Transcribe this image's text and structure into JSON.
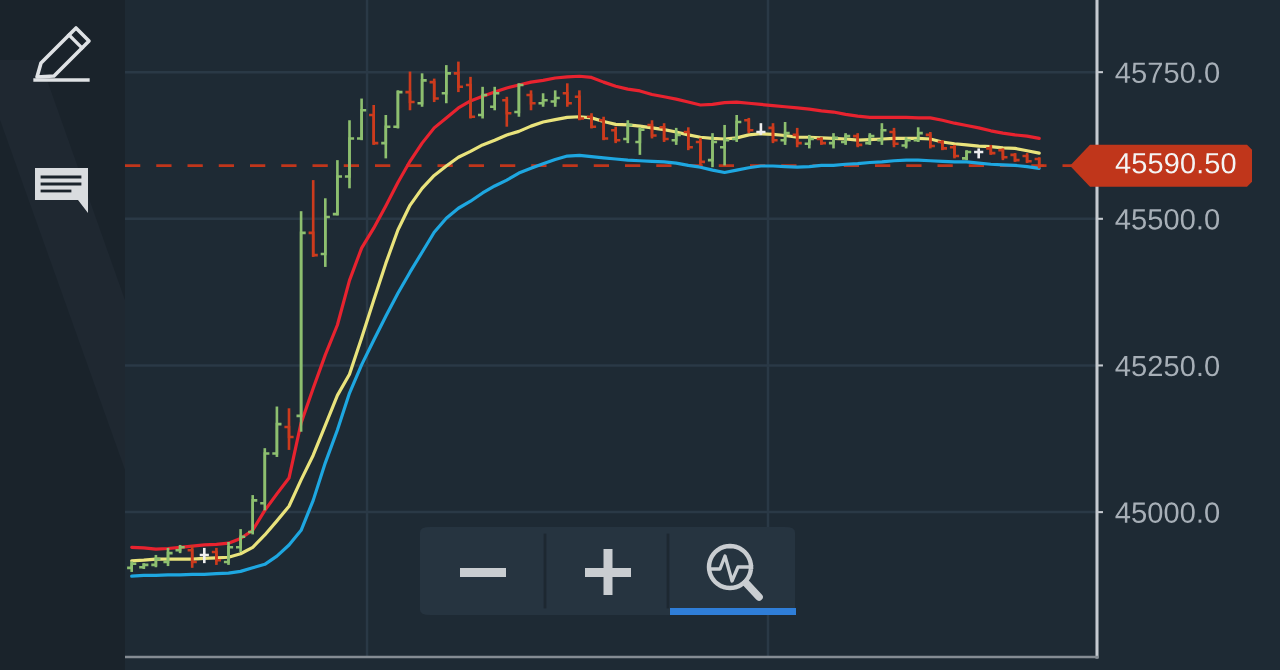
{
  "chart_data": {
    "type": "candlestick",
    "categories": [
      null,
      null,
      null,
      null,
      null,
      null,
      null,
      null,
      null,
      null,
      null,
      null,
      null,
      null,
      null,
      null,
      null,
      null,
      null,
      null,
      null,
      null,
      null,
      null,
      null,
      null,
      null,
      null,
      null,
      null,
      null,
      null,
      null,
      null,
      null,
      null,
      null,
      null,
      null,
      null,
      null,
      null,
      null,
      null,
      null,
      null,
      null,
      null,
      null,
      null,
      null,
      null,
      null,
      null,
      null,
      null,
      null,
      null,
      null,
      null,
      null,
      null,
      null,
      null,
      null,
      null,
      null,
      null,
      null,
      null,
      null,
      null,
      null,
      null,
      null,
      null
    ],
    "ohlc": [
      [
        44905,
        44916,
        44898,
        44912
      ],
      [
        44906,
        44913,
        44903,
        44910
      ],
      [
        44910,
        44927,
        44906,
        44920
      ],
      [
        44915,
        44939,
        44908,
        44930
      ],
      [
        44935,
        44944,
        44930,
        44940
      ],
      [
        44935,
        44944,
        44905,
        44915
      ],
      [
        44927,
        44939,
        44913,
        44927
      ],
      [
        44932,
        44939,
        44910,
        44918
      ],
      [
        44915,
        44949,
        44910,
        44940
      ],
      [
        44940,
        44971,
        44932,
        44958
      ],
      [
        44966,
        45029,
        44962,
        45020
      ],
      [
        45015,
        45109,
        45003,
        45100
      ],
      [
        45100,
        45180,
        45094,
        45150
      ],
      [
        45145,
        45177,
        45106,
        45128
      ],
      [
        45164,
        45513,
        45137,
        45476
      ],
      [
        45476,
        45566,
        45435,
        45438
      ],
      [
        45440,
        45535,
        45418,
        45503
      ],
      [
        45508,
        45600,
        45506,
        45572
      ],
      [
        45572,
        45668,
        45552,
        45637
      ],
      [
        45637,
        45705,
        45634,
        45685
      ],
      [
        45677,
        45694,
        45626,
        45629
      ],
      [
        45629,
        45677,
        45603,
        45657
      ],
      [
        45657,
        45719,
        45654,
        45716
      ],
      [
        45716,
        45751,
        45685,
        45699
      ],
      [
        45697,
        45748,
        45691,
        45736
      ],
      [
        45733,
        45739,
        45699,
        45705
      ],
      [
        45714,
        45762,
        45697,
        45748
      ],
      [
        45748,
        45768,
        45716,
        45725
      ],
      [
        45728,
        45742,
        45671,
        45674
      ],
      [
        45677,
        45725,
        45671,
        45711
      ],
      [
        45691,
        45725,
        45685,
        45714
      ],
      [
        45702,
        45708,
        45657,
        45680
      ],
      [
        45682,
        45731,
        45674,
        45728
      ],
      [
        45711,
        45719,
        45685,
        45697
      ],
      [
        45697,
        45714,
        45691,
        45702
      ],
      [
        45700,
        45719,
        45691,
        45706
      ],
      [
        45714,
        45731,
        45691,
        45697
      ],
      [
        45708,
        45719,
        45668,
        45671
      ],
      [
        45674,
        45680,
        45654,
        45657
      ],
      [
        45668,
        45674,
        45634,
        45637
      ],
      [
        45651,
        45657,
        45629,
        45634
      ],
      [
        45636,
        45668,
        45629,
        45660
      ],
      [
        45631,
        45656,
        45609,
        45652
      ],
      [
        45660,
        45668,
        45637,
        45642
      ],
      [
        45656,
        45663,
        45631,
        45636
      ],
      [
        45634,
        45655,
        45626,
        45643
      ],
      [
        45648,
        45656,
        45617,
        45622
      ],
      [
        45631,
        45638,
        45591,
        45597
      ],
      [
        45600,
        45646,
        45588,
        45631
      ],
      [
        45622,
        45660,
        45591,
        45634
      ],
      [
        45636,
        45677,
        45631,
        45665
      ],
      [
        45668,
        45672,
        45646,
        45651
      ],
      [
        45648,
        45663,
        45643,
        45648
      ],
      [
        45655,
        45663,
        45629,
        45634
      ],
      [
        45634,
        45665,
        45626,
        45646
      ],
      [
        45643,
        45655,
        45622,
        45629
      ],
      [
        45628,
        45643,
        45620,
        45636
      ],
      [
        45636,
        45639,
        45626,
        45629
      ],
      [
        45629,
        45646,
        45620,
        45638
      ],
      [
        45631,
        45646,
        45626,
        45641
      ],
      [
        45641,
        45646,
        45622,
        45626
      ],
      [
        45629,
        45646,
        45626,
        45641
      ],
      [
        45634,
        45663,
        45626,
        45651
      ],
      [
        45648,
        45655,
        45622,
        45628
      ],
      [
        45625,
        45639,
        45620,
        45634
      ],
      [
        45634,
        45656,
        45631,
        45646
      ],
      [
        45643,
        45648,
        45620,
        45624
      ],
      [
        45631,
        45634,
        45617,
        45620
      ],
      [
        45622,
        45626,
        45603,
        45607
      ],
      [
        45603,
        45617,
        45600,
        45614
      ],
      [
        45614,
        45620,
        45603,
        45614
      ],
      [
        45620,
        45626,
        45609,
        45612
      ],
      [
        45617,
        45620,
        45600,
        45605
      ],
      [
        45609,
        45612,
        45597,
        45600
      ],
      [
        45607,
        45612,
        45595,
        45598
      ],
      [
        45602,
        45605,
        45586,
        45590.5
      ]
    ],
    "colors": [
      "#8dbf6f",
      "#8dbf6f",
      "#8dbf6f",
      "#8dbf6f",
      "#8dbf6f",
      "#cc3b1d",
      "#eeeeee",
      "#cc3b1d",
      "#8dbf6f",
      "#8dbf6f",
      "#8dbf6f",
      "#8dbf6f",
      "#8dbf6f",
      "#cc3b1d",
      "#8dbf6f",
      "#cc3b1d",
      "#8dbf6f",
      "#8dbf6f",
      "#8dbf6f",
      "#8dbf6f",
      "#cc3b1d",
      "#8dbf6f",
      "#8dbf6f",
      "#cc3b1d",
      "#8dbf6f",
      "#cc3b1d",
      "#8dbf6f",
      "#cc3b1d",
      "#cc3b1d",
      "#8dbf6f",
      "#8dbf6f",
      "#cc3b1d",
      "#8dbf6f",
      "#cc3b1d",
      "#8dbf6f",
      "#8dbf6f",
      "#cc3b1d",
      "#cc3b1d",
      "#cc3b1d",
      "#cc3b1d",
      "#cc3b1d",
      "#8dbf6f",
      "#8dbf6f",
      "#cc3b1d",
      "#cc3b1d",
      "#8dbf6f",
      "#cc3b1d",
      "#cc3b1d",
      "#8dbf6f",
      "#8dbf6f",
      "#8dbf6f",
      "#cc3b1d",
      "#eeeeee",
      "#cc3b1d",
      "#8dbf6f",
      "#cc3b1d",
      "#8dbf6f",
      "#cc3b1d",
      "#8dbf6f",
      "#8dbf6f",
      "#cc3b1d",
      "#8dbf6f",
      "#8dbf6f",
      "#cc3b1d",
      "#8dbf6f",
      "#8dbf6f",
      "#cc3b1d",
      "#cc3b1d",
      "#cc3b1d",
      "#8dbf6f",
      "#eeeeee",
      "#cc3b1d",
      "#cc3b1d",
      "#cc3b1d",
      "#cc3b1d",
      "#cc3b1d"
    ],
    "series": [
      {
        "type": "line",
        "color": "#e8232f",
        "values": [
          44940,
          44939,
          44937,
          44938,
          44940,
          44942,
          44944,
          44945,
          44947,
          44955,
          44969,
          45003,
          45031,
          45058,
          45152,
          45211,
          45268,
          45319,
          45395,
          45450,
          45484,
          45522,
          45562,
          45598,
          45629,
          45655,
          45672,
          45689,
          45701,
          45709,
          45716,
          45723,
          45728,
          45733,
          45736,
          45740,
          45742,
          45743,
          45741,
          45733,
          45726,
          45721,
          45718,
          45712,
          45708,
          45704,
          45699,
          45694,
          45695,
          45698,
          45699,
          45697,
          45695,
          45693,
          45691,
          45689,
          45687,
          45684,
          45682,
          45678,
          45675,
          45673,
          45673,
          45673,
          45673,
          45672,
          45672,
          45668,
          45663,
          45659,
          45655,
          45650,
          45646,
          45643,
          45641,
          45637
        ]
      },
      {
        "type": "line",
        "color": "#e9e37c",
        "values": [
          44917,
          44918,
          44920,
          44920,
          44920,
          44920,
          44921,
          44922,
          44923,
          44929,
          44940,
          44961,
          44985,
          45010,
          45055,
          45097,
          45148,
          45199,
          45235,
          45297,
          45361,
          45424,
          45481,
          45523,
          45552,
          45574,
          45590,
          45605,
          45615,
          45626,
          45634,
          45643,
          45649,
          45658,
          45665,
          45669,
          45673,
          45674,
          45672,
          45666,
          45661,
          45660,
          45658,
          45655,
          45652,
          45648,
          45643,
          45639,
          45637,
          45636,
          45638,
          45643,
          45645,
          45644,
          45642,
          45639,
          45639,
          45638,
          45637,
          45636,
          45634,
          45635,
          45636,
          45637,
          45637,
          45637,
          45636,
          45631,
          45628,
          45626,
          45624,
          45623,
          45621,
          45620,
          45616,
          45612
        ]
      },
      {
        "type": "line",
        "color": "#1ea7e1",
        "values": [
          44891,
          44892,
          44892,
          44893,
          44893,
          44894,
          44894,
          44895,
          44896,
          44899,
          44905,
          44911,
          44925,
          44944,
          44969,
          45020,
          45084,
          45140,
          45203,
          45251,
          45293,
          45334,
          45373,
          45409,
          45443,
          45477,
          45501,
          45518,
          45530,
          45544,
          45556,
          45566,
          45578,
          45586,
          45594,
          45601,
          45607,
          45608,
          45606,
          45604,
          45602,
          45600,
          45599,
          45598,
          45597,
          45595,
          45591,
          45588,
          45583,
          45579,
          45583,
          45587,
          45590,
          45590,
          45589,
          45588,
          45589,
          45591,
          45591,
          45593,
          45594,
          45596,
          45597,
          45599,
          45600,
          45600,
          45599,
          45598,
          45597,
          45597,
          45595,
          45593,
          45592,
          45591,
          45589,
          45586
        ]
      }
    ],
    "ylim": [
      44753,
      45873
    ],
    "yticks": [
      {
        "value": 45000,
        "label": "45000.0"
      },
      {
        "value": 45250,
        "label": "45250.0"
      },
      {
        "value": 45500,
        "label": "45500.0"
      },
      {
        "value": 45750,
        "label": "45750.0"
      }
    ],
    "grid": "y",
    "tick_labels": "y",
    "ref_lines": [
      {
        "axis": "y",
        "value": 45590.5,
        "label": "45590.50",
        "color": "#c0361b",
        "line_style": "dashed"
      }
    ]
  }
}
